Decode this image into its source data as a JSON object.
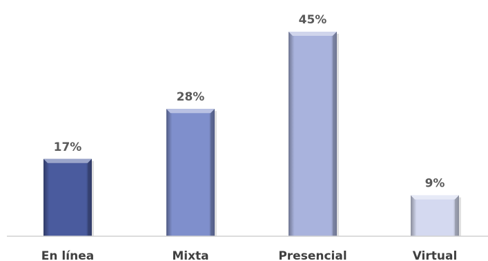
{
  "chart_data": {
    "type": "bar",
    "categories": [
      "En línea",
      "Mixta",
      "Presencial",
      "Virtual"
    ],
    "values": [
      17,
      28,
      45,
      9
    ],
    "value_labels": [
      "17%",
      "28%",
      "45%",
      "9%"
    ],
    "unit": "%",
    "ylim": [
      0,
      50
    ],
    "grid": false,
    "legend": "none",
    "bar_colors": [
      "#4a5b9e",
      "#7f8fcc",
      "#a9b3dd",
      "#d4d9f0"
    ],
    "axis_color": "#d0d0d0"
  }
}
